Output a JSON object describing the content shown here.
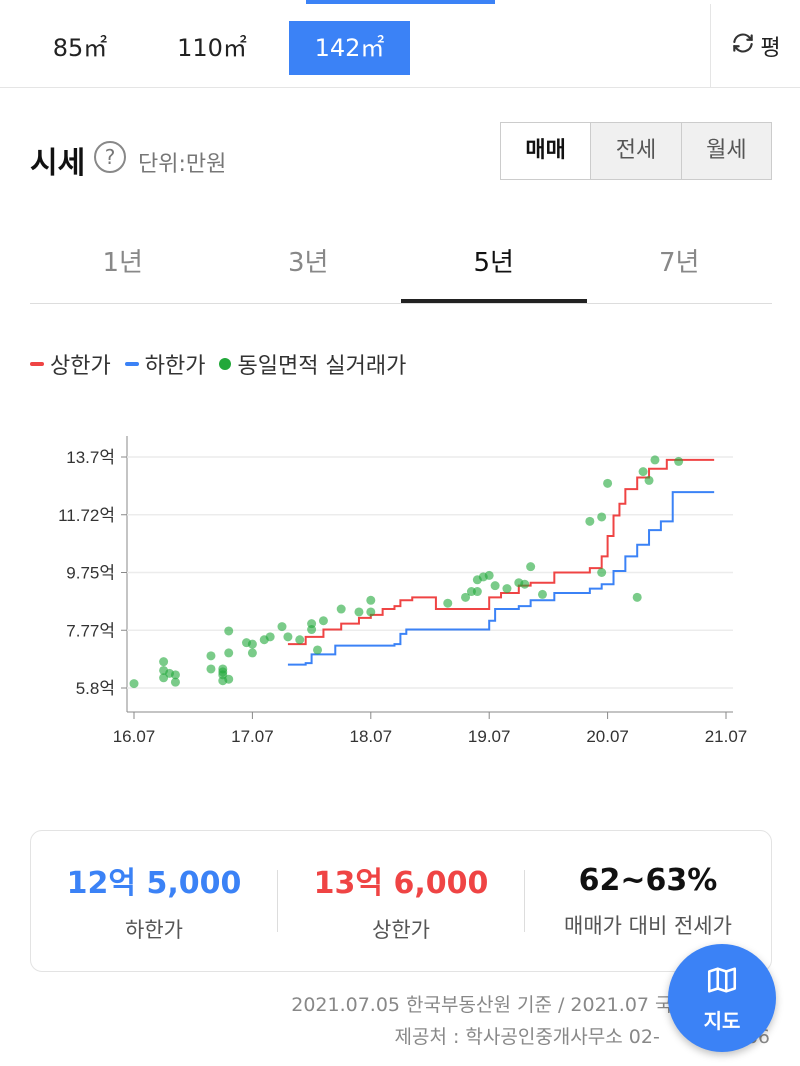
{
  "area_tabs": [
    "85㎡",
    "110㎡",
    "142㎡"
  ],
  "unit_toggle": {
    "label": "평",
    "icon": "refresh-icon"
  },
  "header": {
    "title": "시세",
    "unit": "단위:만원"
  },
  "trade_types": [
    "매매",
    "전세",
    "월세"
  ],
  "periods": [
    "1년",
    "3년",
    "5년",
    "7년"
  ],
  "legend": [
    {
      "label": "상한가",
      "color": "#ef4444"
    },
    {
      "label": "하한가",
      "color": "#3b82f6"
    },
    {
      "label": "동일면적 실거래가",
      "color": "#22a83a"
    }
  ],
  "chart_data": {
    "type": "line",
    "y_ticks": [
      "13.7억",
      "11.72억",
      "9.75억",
      "7.77억",
      "5.8억"
    ],
    "x_ticks": [
      "16.07",
      "17.07",
      "18.07",
      "19.07",
      "20.07",
      "21.07"
    ],
    "ylim": [
      5.8,
      13.7
    ],
    "xlim": [
      0,
      5
    ],
    "series": [
      {
        "name": "상한가",
        "color": "#ef4444",
        "points": [
          [
            1.3,
            7.3
          ],
          [
            1.45,
            7.55
          ],
          [
            1.6,
            7.8
          ],
          [
            1.75,
            8.0
          ],
          [
            1.9,
            8.2
          ],
          [
            2.0,
            8.3
          ],
          [
            2.1,
            8.5
          ],
          [
            2.2,
            8.6
          ],
          [
            2.25,
            8.8
          ],
          [
            2.35,
            8.9
          ],
          [
            2.5,
            8.9
          ],
          [
            2.55,
            8.5
          ],
          [
            2.9,
            8.5
          ],
          [
            3.0,
            8.9
          ],
          [
            3.1,
            9.05
          ],
          [
            3.25,
            9.3
          ],
          [
            3.35,
            9.4
          ],
          [
            3.55,
            9.75
          ],
          [
            3.85,
            9.9
          ],
          [
            3.95,
            10.3
          ],
          [
            4.0,
            11.0
          ],
          [
            4.05,
            11.7
          ],
          [
            4.1,
            12.1
          ],
          [
            4.15,
            12.6
          ],
          [
            4.25,
            13.0
          ],
          [
            4.35,
            13.3
          ],
          [
            4.5,
            13.6
          ],
          [
            4.9,
            13.6
          ]
        ]
      },
      {
        "name": "하한가",
        "color": "#3b82f6",
        "points": [
          [
            1.3,
            6.6
          ],
          [
            1.45,
            6.65
          ],
          [
            1.5,
            6.95
          ],
          [
            1.7,
            7.25
          ],
          [
            2.2,
            7.3
          ],
          [
            2.25,
            7.65
          ],
          [
            2.3,
            7.8
          ],
          [
            2.95,
            7.8
          ],
          [
            3.0,
            8.1
          ],
          [
            3.05,
            8.5
          ],
          [
            3.25,
            8.6
          ],
          [
            3.35,
            8.8
          ],
          [
            3.55,
            9.05
          ],
          [
            3.85,
            9.2
          ],
          [
            3.95,
            9.35
          ],
          [
            4.05,
            9.8
          ],
          [
            4.15,
            10.3
          ],
          [
            4.25,
            10.7
          ],
          [
            4.35,
            11.2
          ],
          [
            4.45,
            11.5
          ],
          [
            4.55,
            12.5
          ],
          [
            4.9,
            12.5
          ]
        ]
      },
      {
        "name": "동일면적 실거래가",
        "color": "#22a83a",
        "points": [
          [
            0.0,
            5.95
          ],
          [
            0.25,
            6.7
          ],
          [
            0.25,
            6.4
          ],
          [
            0.25,
            6.15
          ],
          [
            0.3,
            6.3
          ],
          [
            0.35,
            6.25
          ],
          [
            0.35,
            6.0
          ],
          [
            0.65,
            6.9
          ],
          [
            0.65,
            6.45
          ],
          [
            0.75,
            6.45
          ],
          [
            0.75,
            6.35
          ],
          [
            0.75,
            6.25
          ],
          [
            0.75,
            6.05
          ],
          [
            0.8,
            6.1
          ],
          [
            0.8,
            7.0
          ],
          [
            0.8,
            7.75
          ],
          [
            0.95,
            7.35
          ],
          [
            1.0,
            7.0
          ],
          [
            1.0,
            7.3
          ],
          [
            1.1,
            7.45
          ],
          [
            1.15,
            7.55
          ],
          [
            1.25,
            7.9
          ],
          [
            1.3,
            7.55
          ],
          [
            1.4,
            7.45
          ],
          [
            1.5,
            8.0
          ],
          [
            1.5,
            7.8
          ],
          [
            1.55,
            7.1
          ],
          [
            1.6,
            8.1
          ],
          [
            1.75,
            8.5
          ],
          [
            1.9,
            8.4
          ],
          [
            2.0,
            8.4
          ],
          [
            2.0,
            8.8
          ],
          [
            2.65,
            8.7
          ],
          [
            2.8,
            8.9
          ],
          [
            2.85,
            9.1
          ],
          [
            2.9,
            9.5
          ],
          [
            2.9,
            9.1
          ],
          [
            2.95,
            9.6
          ],
          [
            3.0,
            9.65
          ],
          [
            3.05,
            9.3
          ],
          [
            3.15,
            9.2
          ],
          [
            3.25,
            9.4
          ],
          [
            3.3,
            9.35
          ],
          [
            3.35,
            9.95
          ],
          [
            3.45,
            9.0
          ],
          [
            3.85,
            11.5
          ],
          [
            3.95,
            11.65
          ],
          [
            3.95,
            9.75
          ],
          [
            4.0,
            12.8
          ],
          [
            4.25,
            8.9
          ],
          [
            4.3,
            13.2
          ],
          [
            4.35,
            12.9
          ],
          [
            4.4,
            13.6
          ],
          [
            4.6,
            13.55
          ]
        ]
      }
    ]
  },
  "summary": [
    {
      "value": "12억 5,000",
      "label": "하한가",
      "color": "#3b82f6"
    },
    {
      "value": "13억 6,000",
      "label": "상한가",
      "color": "#ef4444"
    },
    {
      "value": "62~63%",
      "label": "매매가 대비 전세가",
      "color": "#111111"
    }
  ],
  "source": {
    "line1": "2021.07.05 한국부동산원 기준 / 2021.07 국토",
    "line2": "제공처 : 학사공인중개사무소 02-",
    "line2_tail": "66"
  },
  "map_button": {
    "label": "지도",
    "icon": "map-icon"
  }
}
